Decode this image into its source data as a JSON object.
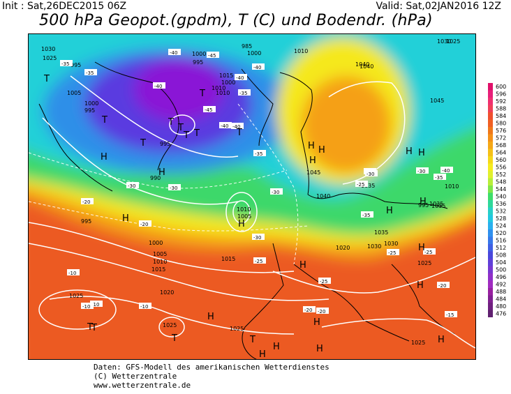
{
  "header": {
    "init": "Init : Sat,26DEC2015 06Z",
    "valid": "Valid: Sat,02JAN2016 12Z",
    "title": "500 hPa Geopot.(gpdm), T (C) und Bodendr. (hPa)"
  },
  "footer": {
    "line1": "Daten: GFS-Modell des amerikanischen Wetterdienstes",
    "line2": "(C) Wetterzentrale",
    "line3": "www.wetterzentrale.de"
  },
  "colors": {
    "ocean": "#ffffff",
    "low_core": "#8a14d6",
    "violet": "#5a3be0",
    "blue": "#2f8fe8",
    "cyan": "#22d0d8",
    "green": "#3ed86a",
    "yellow": "#f5e81e",
    "orange": "#f5a018",
    "red_orange": "#ec5a22",
    "contour": "#ffffff",
    "coast": "#000000"
  },
  "scale": {
    "levels": [
      "600",
      "596",
      "592",
      "588",
      "584",
      "580",
      "576",
      "572",
      "568",
      "564",
      "560",
      "556",
      "552",
      "548",
      "544",
      "540",
      "536",
      "532",
      "528",
      "524",
      "520",
      "516",
      "512",
      "508",
      "504",
      "500",
      "496",
      "492",
      "488",
      "484",
      "480",
      "476"
    ],
    "colors": [
      "#e0106a",
      "#e8207a",
      "#f03070",
      "#f04058",
      "#f05030",
      "#f06024",
      "#f0781a",
      "#f59018",
      "#f5a818",
      "#f5c018",
      "#f5d81a",
      "#f5ec20",
      "#e0f030",
      "#b8ee3a",
      "#80e64a",
      "#3ede6a",
      "#30d89a",
      "#28d0c8",
      "#22c8e0",
      "#2ab0ee",
      "#3090ee",
      "#3878ea",
      "#4060e4",
      "#4a48dc",
      "#6040d8",
      "#7838d0",
      "#9030c8",
      "#a02cc0",
      "#9820a0",
      "#802090",
      "#702080",
      "#602070"
    ]
  },
  "labels": {
    "pressure": [
      {
        "t": "1030"
      },
      {
        "t": "1025"
      },
      {
        "t": "995"
      },
      {
        "t": "1000"
      },
      {
        "t": "995"
      },
      {
        "t": "985"
      },
      {
        "t": "1000"
      },
      {
        "t": "1010"
      },
      {
        "t": "1005"
      },
      {
        "t": "1000"
      },
      {
        "t": "995"
      },
      {
        "t": "1015"
      },
      {
        "t": "1000"
      },
      {
        "t": "1010"
      },
      {
        "t": "1010"
      },
      {
        "t": "1040"
      },
      {
        "t": "1040"
      },
      {
        "t": "1045"
      },
      {
        "t": "995"
      },
      {
        "t": "990"
      },
      {
        "t": "1045"
      },
      {
        "t": "1035"
      },
      {
        "t": "1040"
      },
      {
        "t": "1030"
      },
      {
        "t": "1035"
      },
      {
        "t": "995"
      },
      {
        "t": "995"
      },
      {
        "t": "1010"
      },
      {
        "t": "1005"
      },
      {
        "t": "1000"
      },
      {
        "t": "1005"
      },
      {
        "t": "1010"
      },
      {
        "t": "1015"
      },
      {
        "t": "1020"
      },
      {
        "t": "1015"
      },
      {
        "t": "1025"
      },
      {
        "t": "1020"
      },
      {
        "t": "1035"
      },
      {
        "t": "1030"
      },
      {
        "t": "1025"
      },
      {
        "t": "1025"
      },
      {
        "t": "1025"
      },
      {
        "t": "1025"
      },
      {
        "t": "1025"
      },
      {
        "t": "1035"
      },
      {
        "t": "1030"
      },
      {
        "t": "1010"
      }
    ],
    "temperature": [
      {
        "t": "-35"
      },
      {
        "t": "-35"
      },
      {
        "t": "-40"
      },
      {
        "t": "-45"
      },
      {
        "t": "-40"
      },
      {
        "t": "-40"
      },
      {
        "t": "-35"
      },
      {
        "t": "-40"
      },
      {
        "t": "-45"
      },
      {
        "t": "-40"
      },
      {
        "t": "-35"
      },
      {
        "t": "-30"
      },
      {
        "t": "-30"
      },
      {
        "t": "-40"
      },
      {
        "t": "-20"
      },
      {
        "t": "-20"
      },
      {
        "t": "-30"
      },
      {
        "t": "-25"
      },
      {
        "t": "-10"
      },
      {
        "t": "-10"
      },
      {
        "t": "-10"
      },
      {
        "t": "-10"
      },
      {
        "t": "-20"
      },
      {
        "t": "-25"
      },
      {
        "t": "-20"
      },
      {
        "t": "-30"
      },
      {
        "t": "-30"
      },
      {
        "t": "-30"
      },
      {
        "t": "-35"
      },
      {
        "t": "-30"
      },
      {
        "t": "-25"
      },
      {
        "t": "-25"
      },
      {
        "t": "-20"
      },
      {
        "t": "-15"
      },
      {
        "t": "-25"
      },
      {
        "t": "-35"
      },
      {
        "t": "-40"
      }
    ],
    "markers": [
      {
        "t": "T"
      },
      {
        "t": "T"
      },
      {
        "t": "T"
      },
      {
        "t": "T"
      },
      {
        "t": "T"
      },
      {
        "t": "T"
      },
      {
        "t": "T"
      },
      {
        "t": "T"
      },
      {
        "t": "T"
      },
      {
        "t": "H"
      },
      {
        "t": "H"
      },
      {
        "t": "H"
      },
      {
        "t": "H"
      },
      {
        "t": "H"
      },
      {
        "t": "H"
      },
      {
        "t": "H"
      },
      {
        "t": "H"
      },
      {
        "t": "H"
      },
      {
        "t": "H"
      },
      {
        "t": "H"
      },
      {
        "t": "H"
      },
      {
        "t": "H"
      },
      {
        "t": "H"
      },
      {
        "t": "H"
      },
      {
        "t": "T"
      },
      {
        "t": "T"
      },
      {
        "t": "H"
      },
      {
        "t": "H"
      },
      {
        "t": "H"
      },
      {
        "t": "T"
      },
      {
        "t": "H"
      },
      {
        "t": "T"
      },
      {
        "t": "H"
      }
    ]
  }
}
